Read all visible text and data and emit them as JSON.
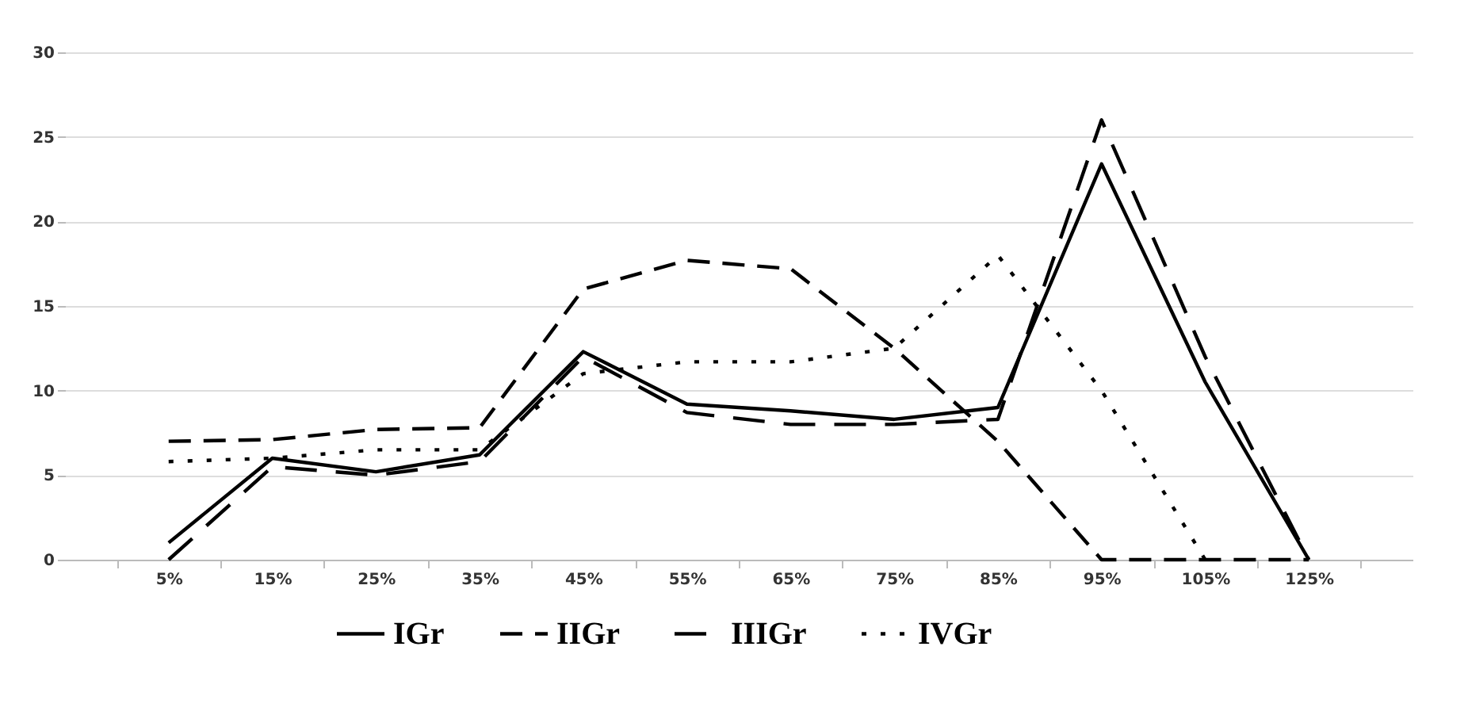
{
  "chart_data": {
    "type": "line",
    "categories": [
      "5%",
      "15%",
      "25%",
      "35%",
      "45%",
      "55%",
      "65%",
      "75%",
      "85%",
      "95%",
      "105%",
      "125%"
    ],
    "series": [
      {
        "name": "IGr",
        "color": "#000000",
        "line_style": "solid",
        "values": [
          1,
          6,
          5.2,
          6.2,
          12.3,
          9.2,
          8.8,
          8.3,
          9,
          23.4,
          10.5,
          0
        ]
      },
      {
        "name": "IIGr",
        "color": "#000000",
        "line_style": "dashed",
        "values": [
          7,
          7.1,
          7.7,
          7.8,
          16,
          17.7,
          17.2,
          12.5,
          7,
          0,
          0,
          0
        ]
      },
      {
        "name": "IIIGr",
        "color": "#000000",
        "line_style": "dashed",
        "values": [
          0,
          5.5,
          5,
          5.8,
          12,
          8.7,
          8,
          8,
          8.3,
          26,
          12,
          0
        ]
      },
      {
        "name": "IVGr",
        "color": "#000000",
        "line_style": "dotted",
        "values": [
          5.8,
          6,
          6.5,
          6.5,
          11,
          11.7,
          11.7,
          12.5,
          18,
          10,
          0,
          null
        ]
      }
    ],
    "ylim": [
      0,
      30
    ],
    "yticks": [
      0,
      5,
      10,
      15,
      20,
      25,
      30
    ],
    "grid": "y",
    "legend": "bottom",
    "marker": "none"
  }
}
